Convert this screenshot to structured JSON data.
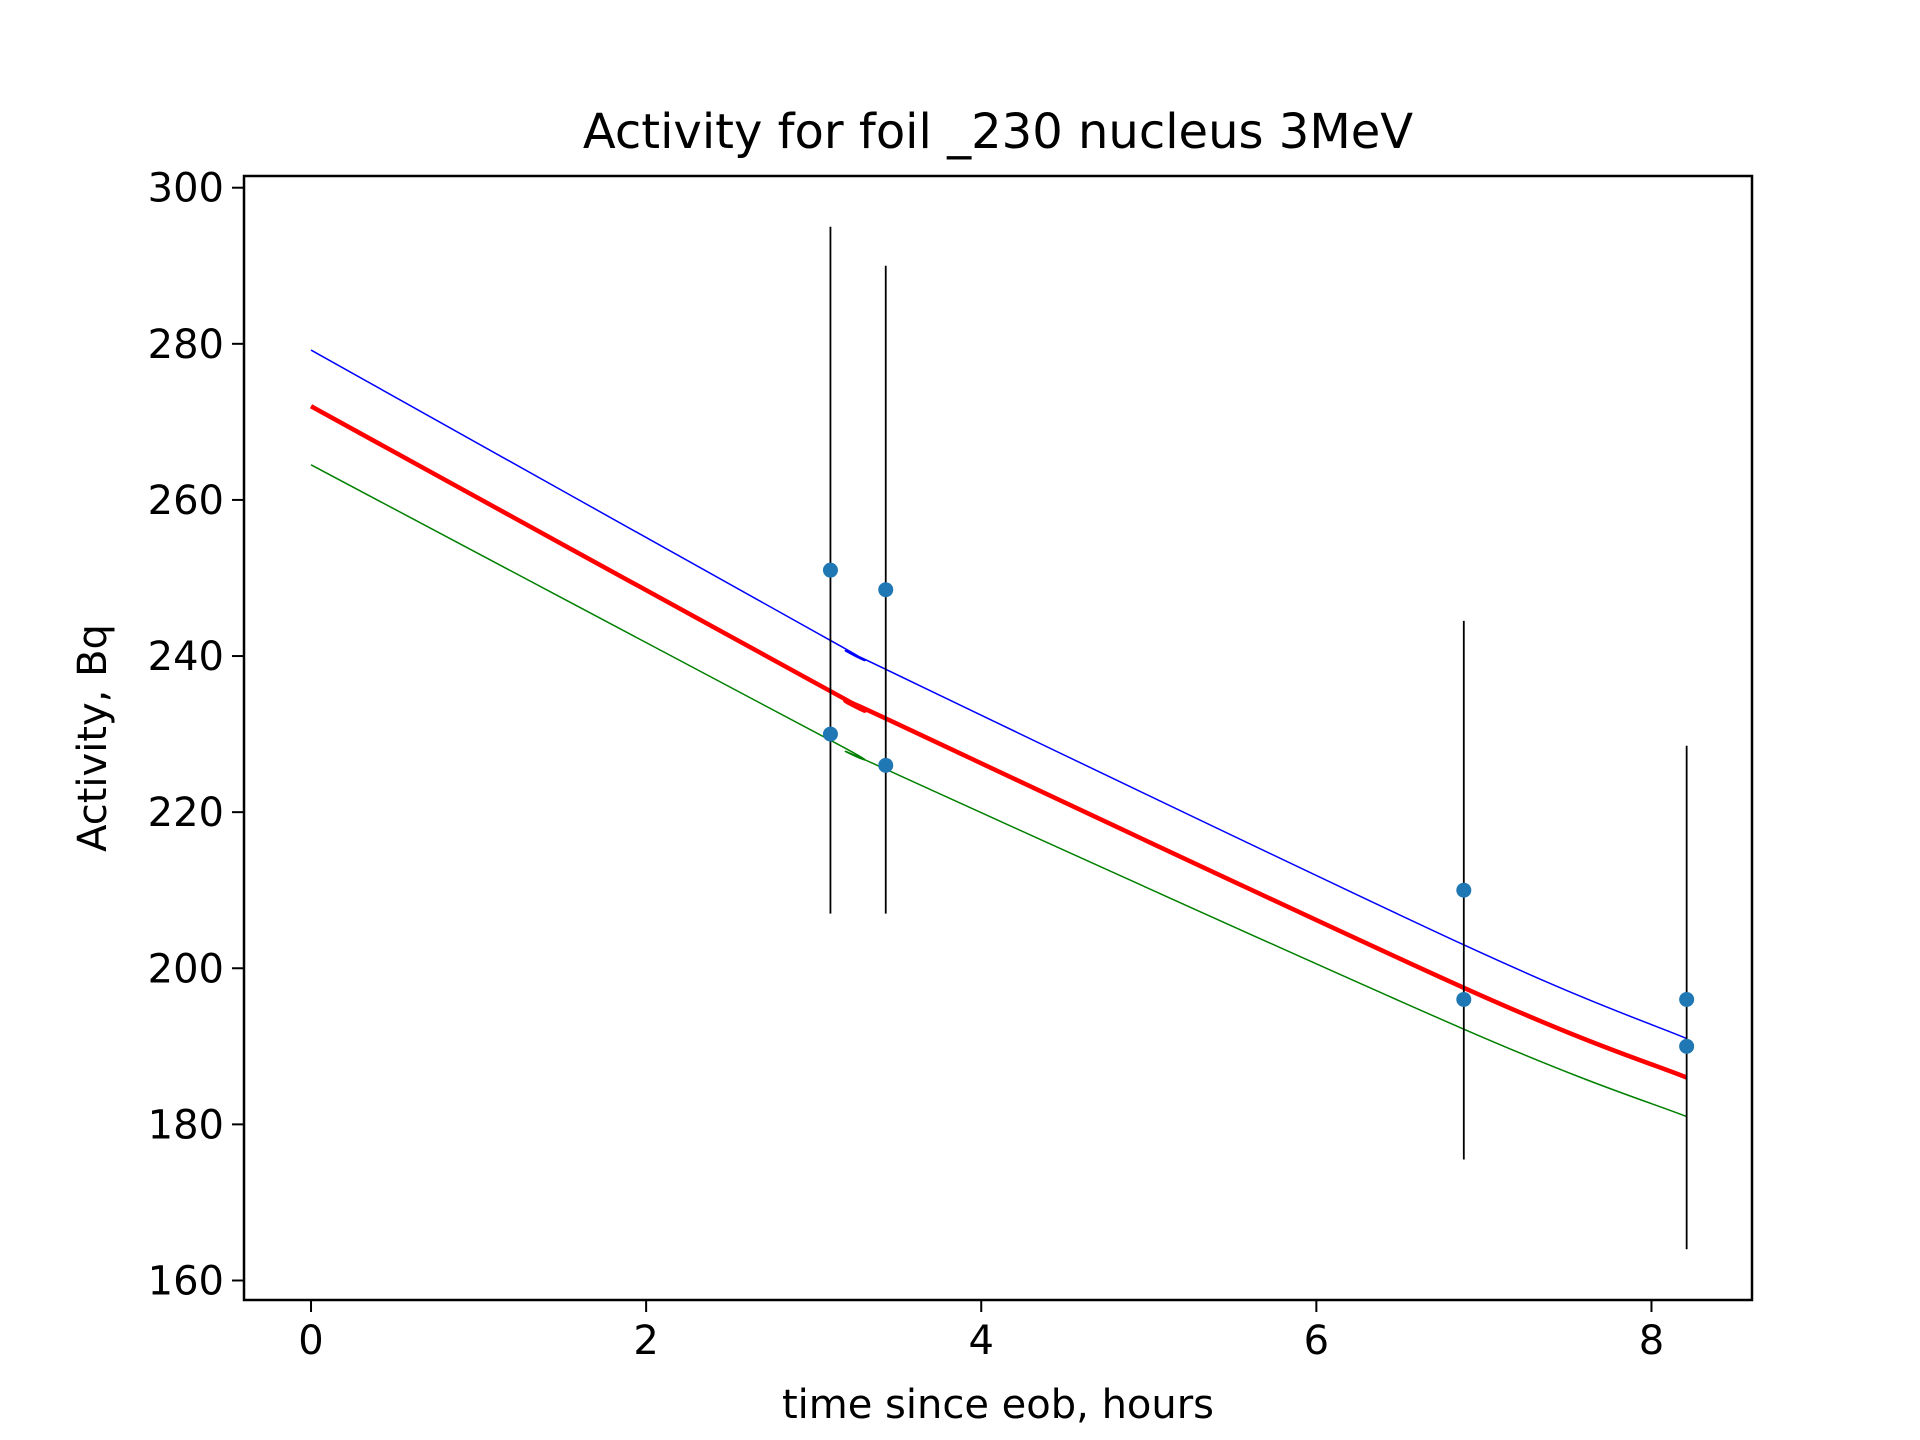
{
  "chart_data": {
    "type": "scatter",
    "title": "Activity for foil _230 nucleus 3MeV",
    "xlabel": "time since eob, hours",
    "ylabel": "Activity, Bq",
    "xlim": [
      -0.4,
      8.6
    ],
    "ylim": [
      157.5,
      301.5
    ],
    "xticks": [
      0,
      2,
      4,
      6,
      8
    ],
    "yticks": [
      160,
      180,
      200,
      220,
      240,
      260,
      280,
      300
    ],
    "grid": false,
    "legend": "none",
    "points": {
      "color": "#1f77b4",
      "x": [
        3.1,
        3.1,
        3.43,
        3.43,
        6.88,
        6.88,
        8.21,
        8.21
      ],
      "y": [
        251,
        230,
        248.5,
        226,
        210,
        196,
        196,
        190
      ]
    },
    "error_bars": {
      "color": "#000000",
      "items": [
        {
          "x": 3.1,
          "low": 207,
          "high": 295
        },
        {
          "x": 3.43,
          "low": 207,
          "high": 290
        },
        {
          "x": 6.88,
          "low": 175.5,
          "high": 244.5
        },
        {
          "x": 8.21,
          "low": 164,
          "high": 228.5
        }
      ]
    },
    "curves": [
      {
        "color": "#ff0000",
        "width": "thick",
        "x": [
          0,
          3.1,
          3.43,
          6.88,
          8.21
        ],
        "y": [
          272,
          235.5,
          232,
          197.5,
          186
        ]
      },
      {
        "color": "#0000ff",
        "width": "thin",
        "x": [
          0,
          3.1,
          3.43,
          6.88,
          8.21
        ],
        "y": [
          279.2,
          242,
          238.3,
          203,
          191
        ]
      },
      {
        "color": "#008000",
        "width": "thin",
        "x": [
          0,
          3.1,
          3.43,
          6.88,
          8.21
        ],
        "y": [
          264.5,
          229.2,
          225.5,
          192.2,
          181
        ]
      }
    ]
  }
}
